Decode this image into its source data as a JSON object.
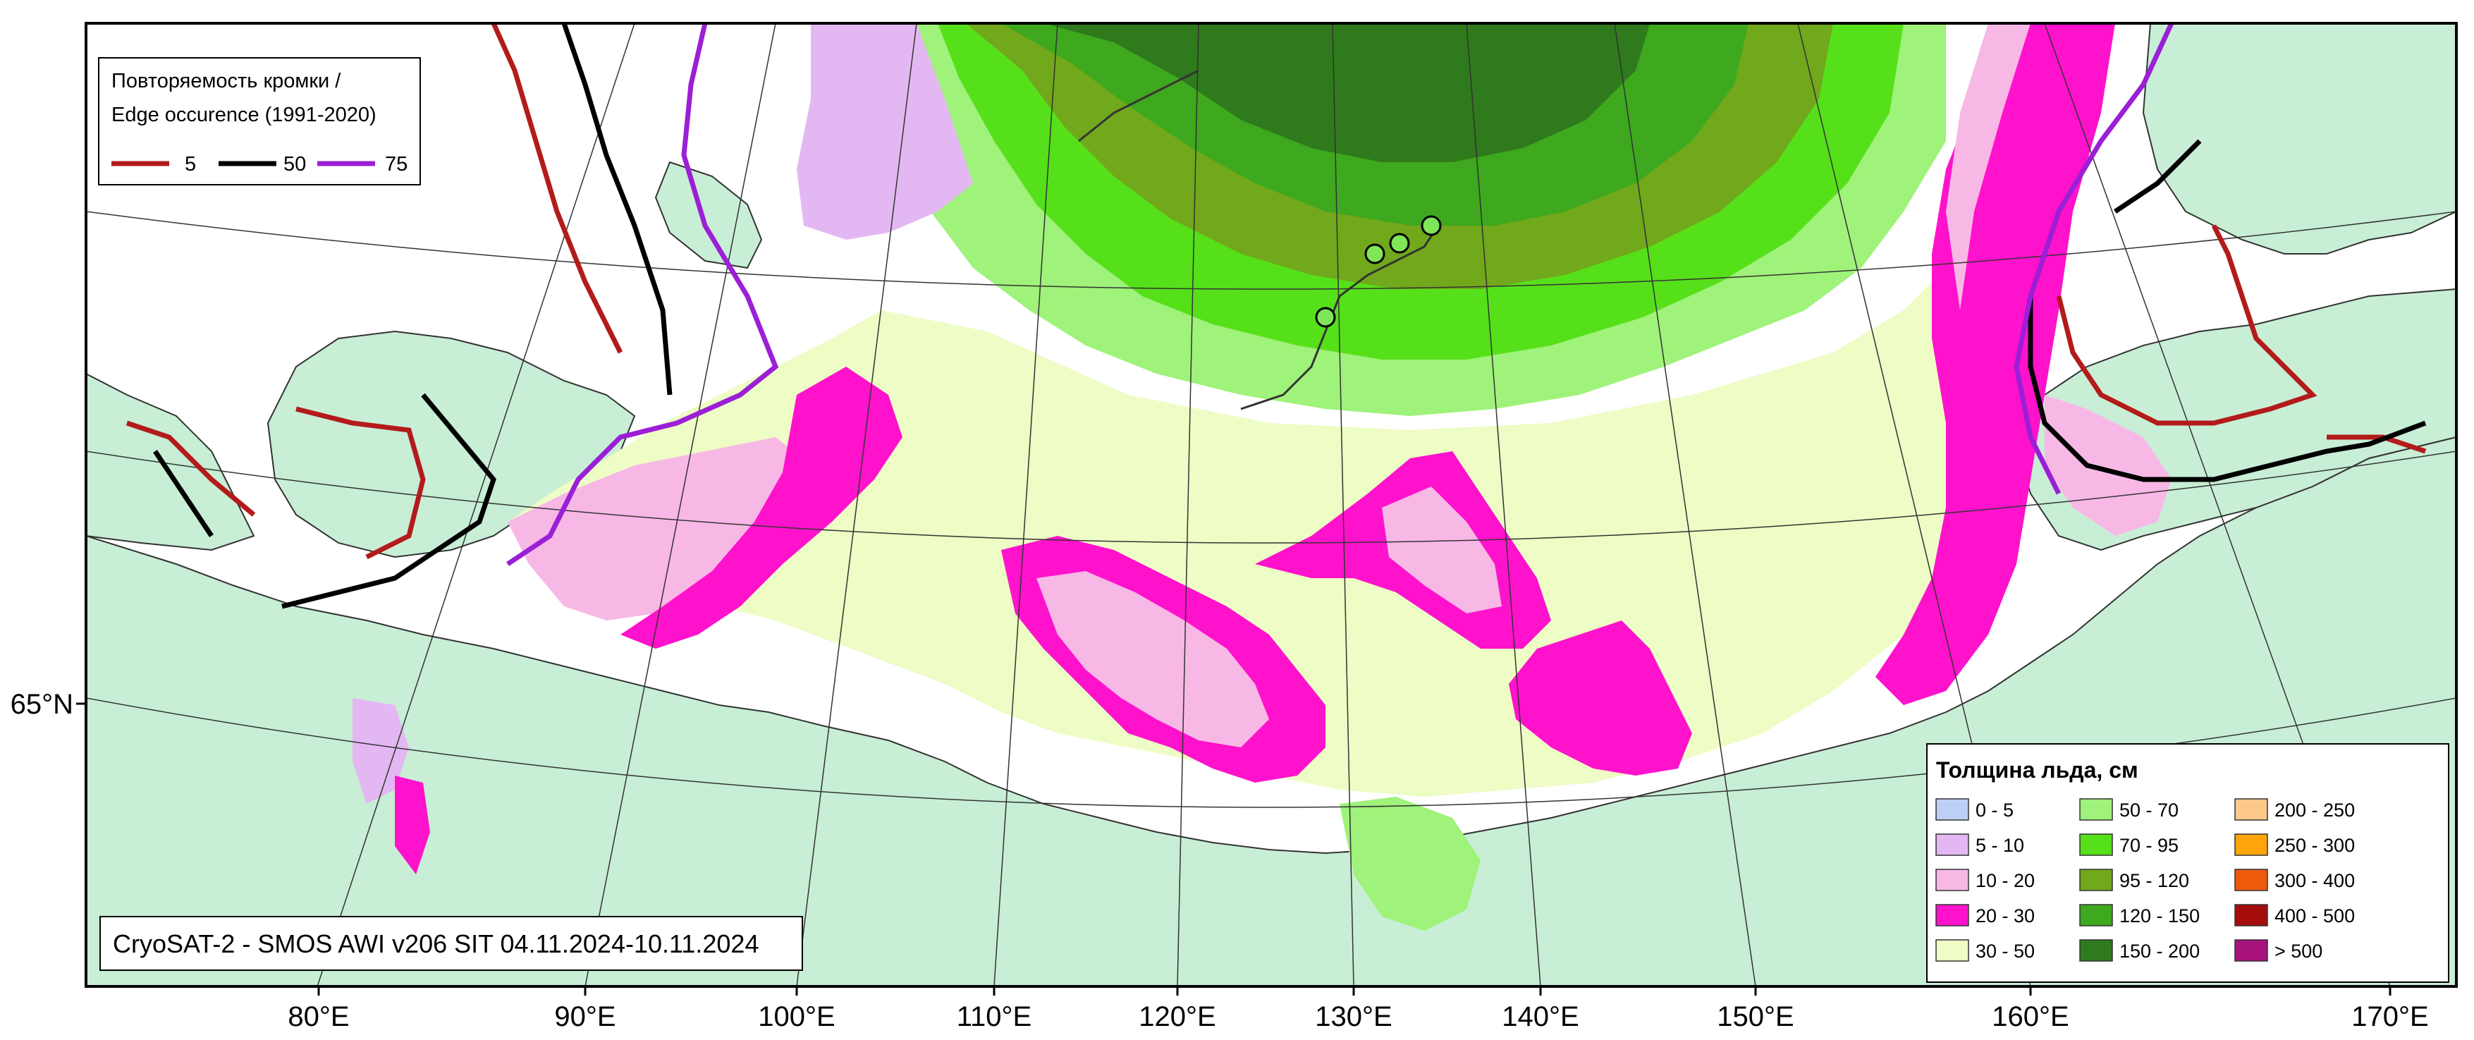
{
  "axes": {
    "longitude_ticks": [
      "80°E",
      "90°E",
      "100°E",
      "110°E",
      "120°E",
      "130°E",
      "140°E",
      "150°E",
      "160°E",
      "170°E"
    ],
    "latitude_ticks": [
      "65°N"
    ]
  },
  "edge_legend": {
    "title_line1": "Повторяемость кромки /",
    "title_line2": "Edge occurence (1991-2020)",
    "items": [
      {
        "label": "5",
        "color": "#b31b1b"
      },
      {
        "label": "50",
        "color": "#000000"
      },
      {
        "label": "75",
        "color": "#9b1fd6"
      }
    ]
  },
  "thickness_legend": {
    "title": "Толщина льда, см",
    "items": [
      {
        "label": "0 - 5",
        "color": "#bcd0f5"
      },
      {
        "label": "5 - 10",
        "color": "#e3b8f2"
      },
      {
        "label": "10 - 20",
        "color": "#f7b8e6"
      },
      {
        "label": "20 - 30",
        "color": "#ff12cc"
      },
      {
        "label": "30 - 50",
        "color": "#eefcc5"
      },
      {
        "label": "50 - 70",
        "color": "#9ff27a"
      },
      {
        "label": "70 - 95",
        "color": "#56e01a"
      },
      {
        "label": "95 - 120",
        "color": "#72a81b"
      },
      {
        "label": "120 - 150",
        "color": "#3ea81e"
      },
      {
        "label": "150 - 200",
        "color": "#2f7a1c"
      },
      {
        "label": "200 - 250",
        "color": "#fcc98a"
      },
      {
        "label": "250 - 300",
        "color": "#ffa50a"
      },
      {
        "label": "300 - 400",
        "color": "#ee5a0c"
      },
      {
        "label": "400 - 500",
        "color": "#a50c0c"
      },
      {
        "label": "> 500",
        "color": "#a8127c"
      }
    ]
  },
  "caption": "CryoSAT-2 - SMOS AWI v206 SIT 04.11.2024-10.11.2024",
  "tracks": {
    "point_color": "#7fe65a",
    "count_points": 4
  },
  "colors": {
    "land": "#c8eed6",
    "water": "#ffffff",
    "frame": "#000000"
  }
}
